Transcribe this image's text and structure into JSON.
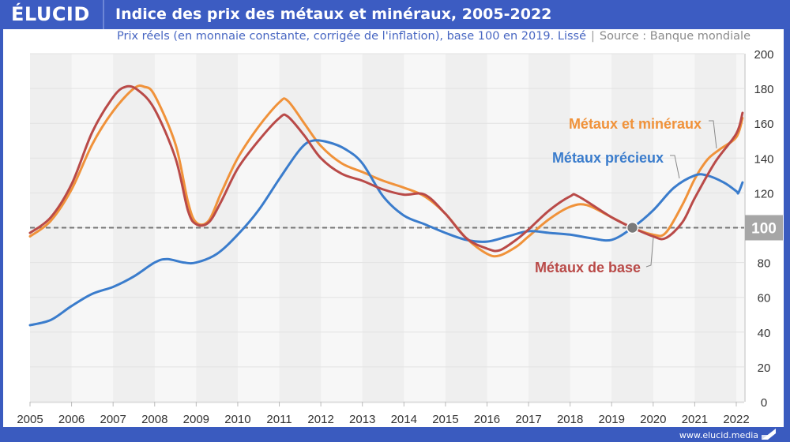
{
  "header": {
    "logo": "ÉLUCID",
    "title": "Indice des prix des métaux et minéraux, 2005-2022"
  },
  "subtitle": {
    "main": "Prix réels (en monnaie constante, corrigée de l'inflation), base 100 en 2019. Lissé",
    "separator": "|",
    "source": "Source : Banque mondiale"
  },
  "footer": {
    "url": "www.elucid.media"
  },
  "colors": {
    "brand": "#3c5cc2",
    "orange": "#f0923a",
    "red": "#b94a48",
    "blue": "#3a7ccc",
    "reference": "#777777"
  },
  "chart_data": {
    "type": "line",
    "title": "Indice des prix des métaux et minéraux, 2005-2022",
    "subtitle": "Prix réels (en monnaie constante, corrigée de l'inflation), base 100 en 2019. Lissé | Source : Banque mondiale",
    "xlabel": "",
    "ylabel": "",
    "xlim": [
      2005,
      2022.15
    ],
    "ylim": [
      0,
      200
    ],
    "x_ticks": [
      "2005",
      "2006",
      "2007",
      "2008",
      "2009",
      "2010",
      "2011",
      "2012",
      "2013",
      "2014",
      "2015",
      "2016",
      "2017",
      "2018",
      "2019",
      "2020",
      "2021",
      "2022"
    ],
    "y_ticks": [
      "0",
      "20",
      "40",
      "60",
      "80",
      "100",
      "120",
      "140",
      "160",
      "180",
      "200"
    ],
    "y_axis_side": "right",
    "highlighted_tick": "100",
    "grid": true,
    "reference_line": {
      "y": 100,
      "style": "dashed"
    },
    "reference_point": {
      "x": 2019.5,
      "y": 100
    },
    "series": [
      {
        "name": "Métaux et minéraux",
        "color_key": "orange",
        "points": [
          [
            2005,
            95
          ],
          [
            2005.5,
            104
          ],
          [
            2006,
            122
          ],
          [
            2006.5,
            148
          ],
          [
            2007,
            167
          ],
          [
            2007.5,
            180
          ],
          [
            2007.75,
            181
          ],
          [
            2008,
            176
          ],
          [
            2008.5,
            148
          ],
          [
            2008.8,
            115
          ],
          [
            2009,
            103
          ],
          [
            2009.3,
            104
          ],
          [
            2009.6,
            120
          ],
          [
            2010,
            140
          ],
          [
            2010.5,
            158
          ],
          [
            2011,
            172
          ],
          [
            2011.2,
            173
          ],
          [
            2011.6,
            160
          ],
          [
            2012,
            147
          ],
          [
            2012.5,
            137
          ],
          [
            2013,
            132
          ],
          [
            2013.5,
            127
          ],
          [
            2014,
            123
          ],
          [
            2014.5,
            118
          ],
          [
            2015,
            108
          ],
          [
            2015.5,
            94
          ],
          [
            2016,
            85
          ],
          [
            2016.3,
            84
          ],
          [
            2016.7,
            89
          ],
          [
            2017,
            95
          ],
          [
            2017.5,
            105
          ],
          [
            2018,
            112
          ],
          [
            2018.4,
            113
          ],
          [
            2019,
            106
          ],
          [
            2019.5,
            100
          ],
          [
            2020,
            96
          ],
          [
            2020.3,
            97
          ],
          [
            2020.7,
            113
          ],
          [
            2021,
            128
          ],
          [
            2021.3,
            139
          ],
          [
            2021.6,
            145
          ],
          [
            2022,
            152
          ],
          [
            2022.15,
            163
          ]
        ],
        "label": "Métaux et minéraux",
        "label_position": "upper-right"
      },
      {
        "name": "Métaux précieux",
        "color_key": "blue",
        "points": [
          [
            2005,
            44
          ],
          [
            2005.5,
            47
          ],
          [
            2006,
            55
          ],
          [
            2006.5,
            62
          ],
          [
            2007,
            66
          ],
          [
            2007.5,
            72
          ],
          [
            2008,
            80
          ],
          [
            2008.3,
            82
          ],
          [
            2008.7,
            80
          ],
          [
            2009,
            80
          ],
          [
            2009.5,
            85
          ],
          [
            2010,
            96
          ],
          [
            2010.5,
            110
          ],
          [
            2011,
            128
          ],
          [
            2011.5,
            145
          ],
          [
            2011.8,
            150
          ],
          [
            2012.2,
            149
          ],
          [
            2012.6,
            145
          ],
          [
            2013,
            137
          ],
          [
            2013.5,
            118
          ],
          [
            2014,
            107
          ],
          [
            2014.5,
            102
          ],
          [
            2015,
            97
          ],
          [
            2015.5,
            93
          ],
          [
            2016,
            92
          ],
          [
            2016.5,
            95
          ],
          [
            2017,
            98
          ],
          [
            2017.5,
            97
          ],
          [
            2018,
            96
          ],
          [
            2018.5,
            94
          ],
          [
            2019,
            93
          ],
          [
            2019.5,
            100
          ],
          [
            2020,
            110
          ],
          [
            2020.5,
            123
          ],
          [
            2021,
            130
          ],
          [
            2021.3,
            130
          ],
          [
            2021.7,
            126
          ],
          [
            2022,
            121
          ],
          [
            2022.05,
            120
          ],
          [
            2022.15,
            126
          ]
        ],
        "label": "Métaux précieux",
        "label_position": "upper-right"
      },
      {
        "name": "Métaux de base",
        "color_key": "red",
        "points": [
          [
            2005,
            97
          ],
          [
            2005.5,
            106
          ],
          [
            2006,
            125
          ],
          [
            2006.5,
            155
          ],
          [
            2007,
            175
          ],
          [
            2007.3,
            181
          ],
          [
            2007.6,
            179
          ],
          [
            2008,
            168
          ],
          [
            2008.5,
            140
          ],
          [
            2008.8,
            110
          ],
          [
            2009,
            102
          ],
          [
            2009.3,
            103
          ],
          [
            2009.6,
            115
          ],
          [
            2010,
            134
          ],
          [
            2010.5,
            150
          ],
          [
            2011,
            163
          ],
          [
            2011.2,
            164
          ],
          [
            2011.6,
            153
          ],
          [
            2012,
            140
          ],
          [
            2012.5,
            131
          ],
          [
            2013,
            127
          ],
          [
            2013.5,
            122
          ],
          [
            2014,
            119
          ],
          [
            2014.5,
            119
          ],
          [
            2015,
            108
          ],
          [
            2015.5,
            94
          ],
          [
            2016,
            88
          ],
          [
            2016.3,
            87
          ],
          [
            2016.7,
            93
          ],
          [
            2017,
            99
          ],
          [
            2017.5,
            110
          ],
          [
            2018,
            118
          ],
          [
            2018.2,
            118
          ],
          [
            2019,
            106
          ],
          [
            2019.5,
            100
          ],
          [
            2020,
            95
          ],
          [
            2020.3,
            94
          ],
          [
            2020.7,
            103
          ],
          [
            2021,
            117
          ],
          [
            2021.5,
            138
          ],
          [
            2022,
            154
          ],
          [
            2022.15,
            166
          ]
        ],
        "label": "Métaux de base",
        "label_position": "lower-right"
      }
    ]
  }
}
